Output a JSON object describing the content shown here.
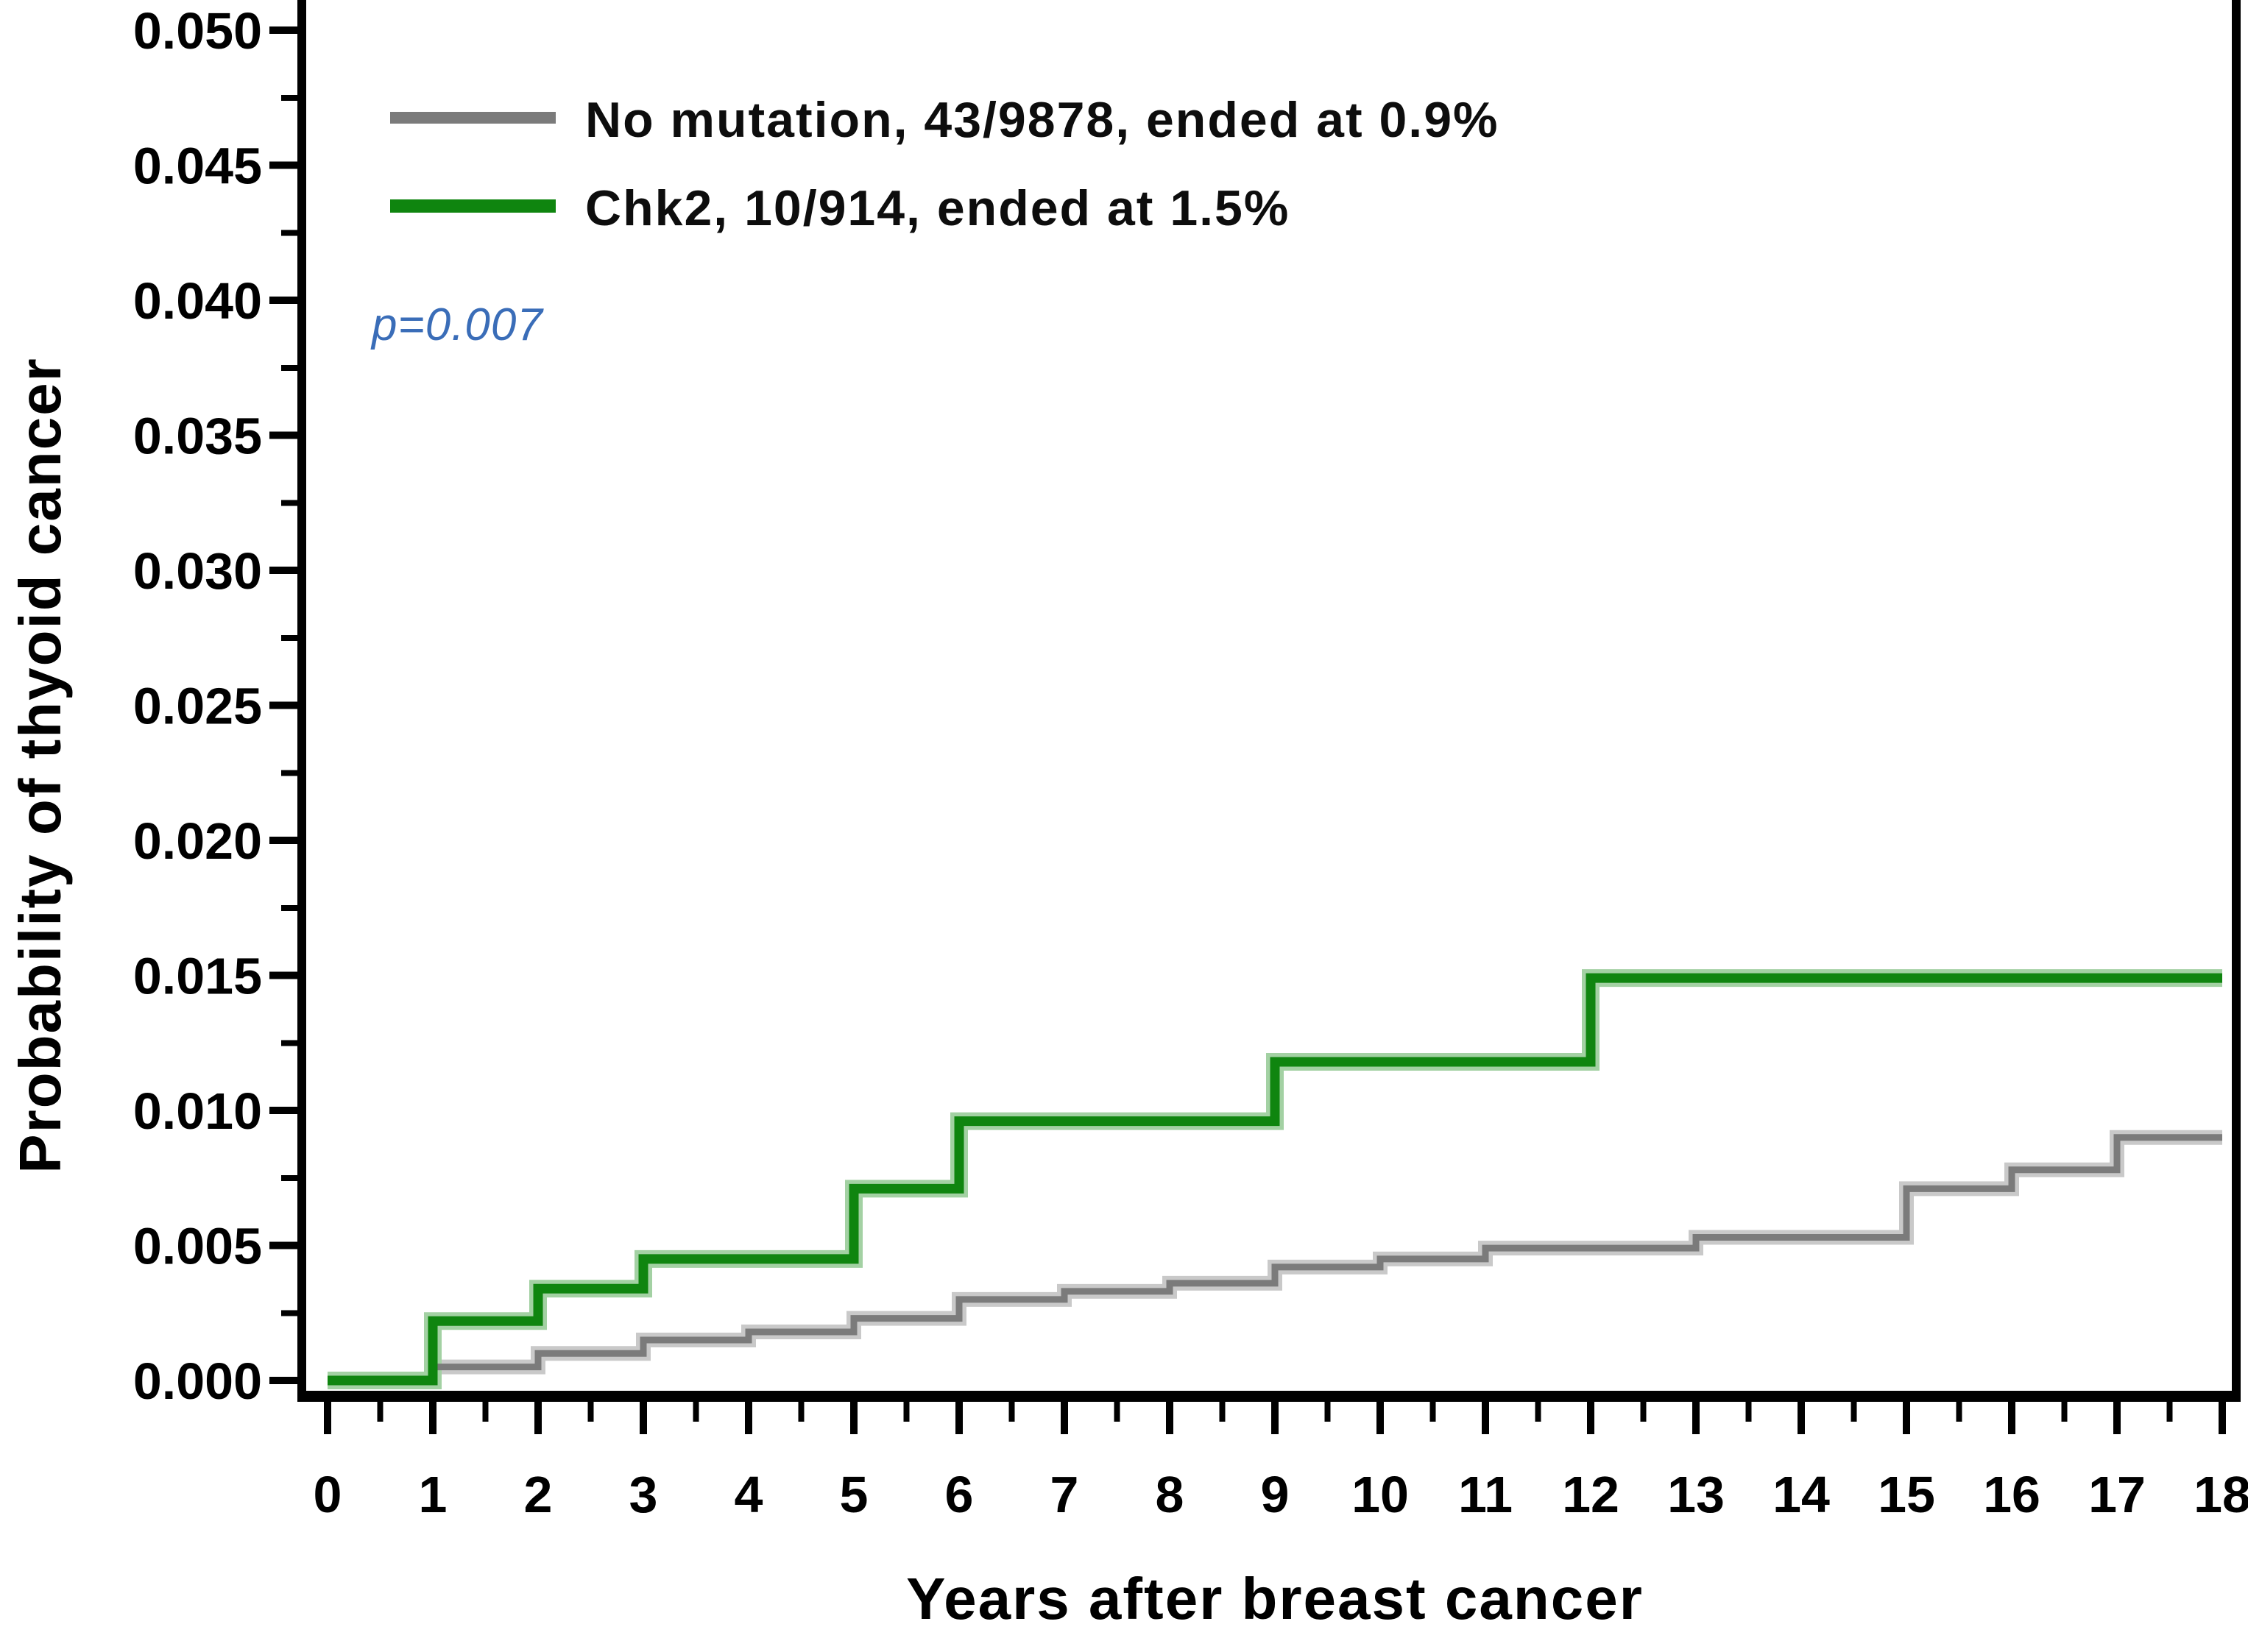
{
  "figure": {
    "background": "#ffffff",
    "axis_color": "#000000"
  },
  "chart_data": {
    "type": "line",
    "step": true,
    "title": "",
    "xlabel": "Years after breast cancer",
    "ylabel": "Probability of thyoid cancer",
    "xlim": [
      0,
      18
    ],
    "ylim": [
      0,
      0.05
    ],
    "grid": false,
    "legend_position": "top-left",
    "x_tick_labels": [
      "0",
      "1",
      "2",
      "3",
      "4",
      "5",
      "6",
      "7",
      "8",
      "9",
      "10",
      "11",
      "12",
      "13",
      "14",
      "15",
      "16",
      "17",
      "18"
    ],
    "x_minor_tick_step": 0.5,
    "y_tick_labels": [
      "0.000",
      "0.005",
      "0.010",
      "0.015",
      "0.020",
      "0.025",
      "0.030",
      "0.035",
      "0.040",
      "0.045",
      "0.050"
    ],
    "y_minor_tick_step": 0.0025,
    "series": [
      {
        "name": "No mutation, 43/9878, ended at 0.9%",
        "color": "#7b7b7b",
        "halo_color": "#c9c9c9",
        "line_width": 9,
        "ended_at": "0.9%",
        "events": "43/9878",
        "points": [
          [
            0,
            0.0
          ],
          [
            1,
            0.0005
          ],
          [
            2,
            0.001
          ],
          [
            3,
            0.0015
          ],
          [
            4,
            0.0018
          ],
          [
            5,
            0.0023
          ],
          [
            6,
            0.003
          ],
          [
            7,
            0.0033
          ],
          [
            8,
            0.0036
          ],
          [
            9,
            0.0042
          ],
          [
            10,
            0.0045
          ],
          [
            11,
            0.0049
          ],
          [
            13,
            0.0053
          ],
          [
            15,
            0.0071
          ],
          [
            16,
            0.0078
          ],
          [
            17,
            0.009
          ],
          [
            18,
            0.009
          ]
        ]
      },
      {
        "name": "Chk2, 10/914, ended at 1.5%",
        "color": "#0f850f",
        "halo_color": "#a3d1a3",
        "line_width": 13,
        "ended_at": "1.5%",
        "events": "10/914",
        "points": [
          [
            0,
            0.0
          ],
          [
            1,
            0.0022
          ],
          [
            2,
            0.0034
          ],
          [
            3,
            0.0045
          ],
          [
            5,
            0.0071
          ],
          [
            6,
            0.0096
          ],
          [
            9,
            0.0118
          ],
          [
            12,
            0.0149
          ],
          [
            18,
            0.0149
          ]
        ]
      }
    ],
    "annotations": [
      {
        "text": "p=0.007",
        "color": "#3a6db8",
        "italic": true,
        "x": 0.45,
        "y": 0.039
      }
    ]
  }
}
